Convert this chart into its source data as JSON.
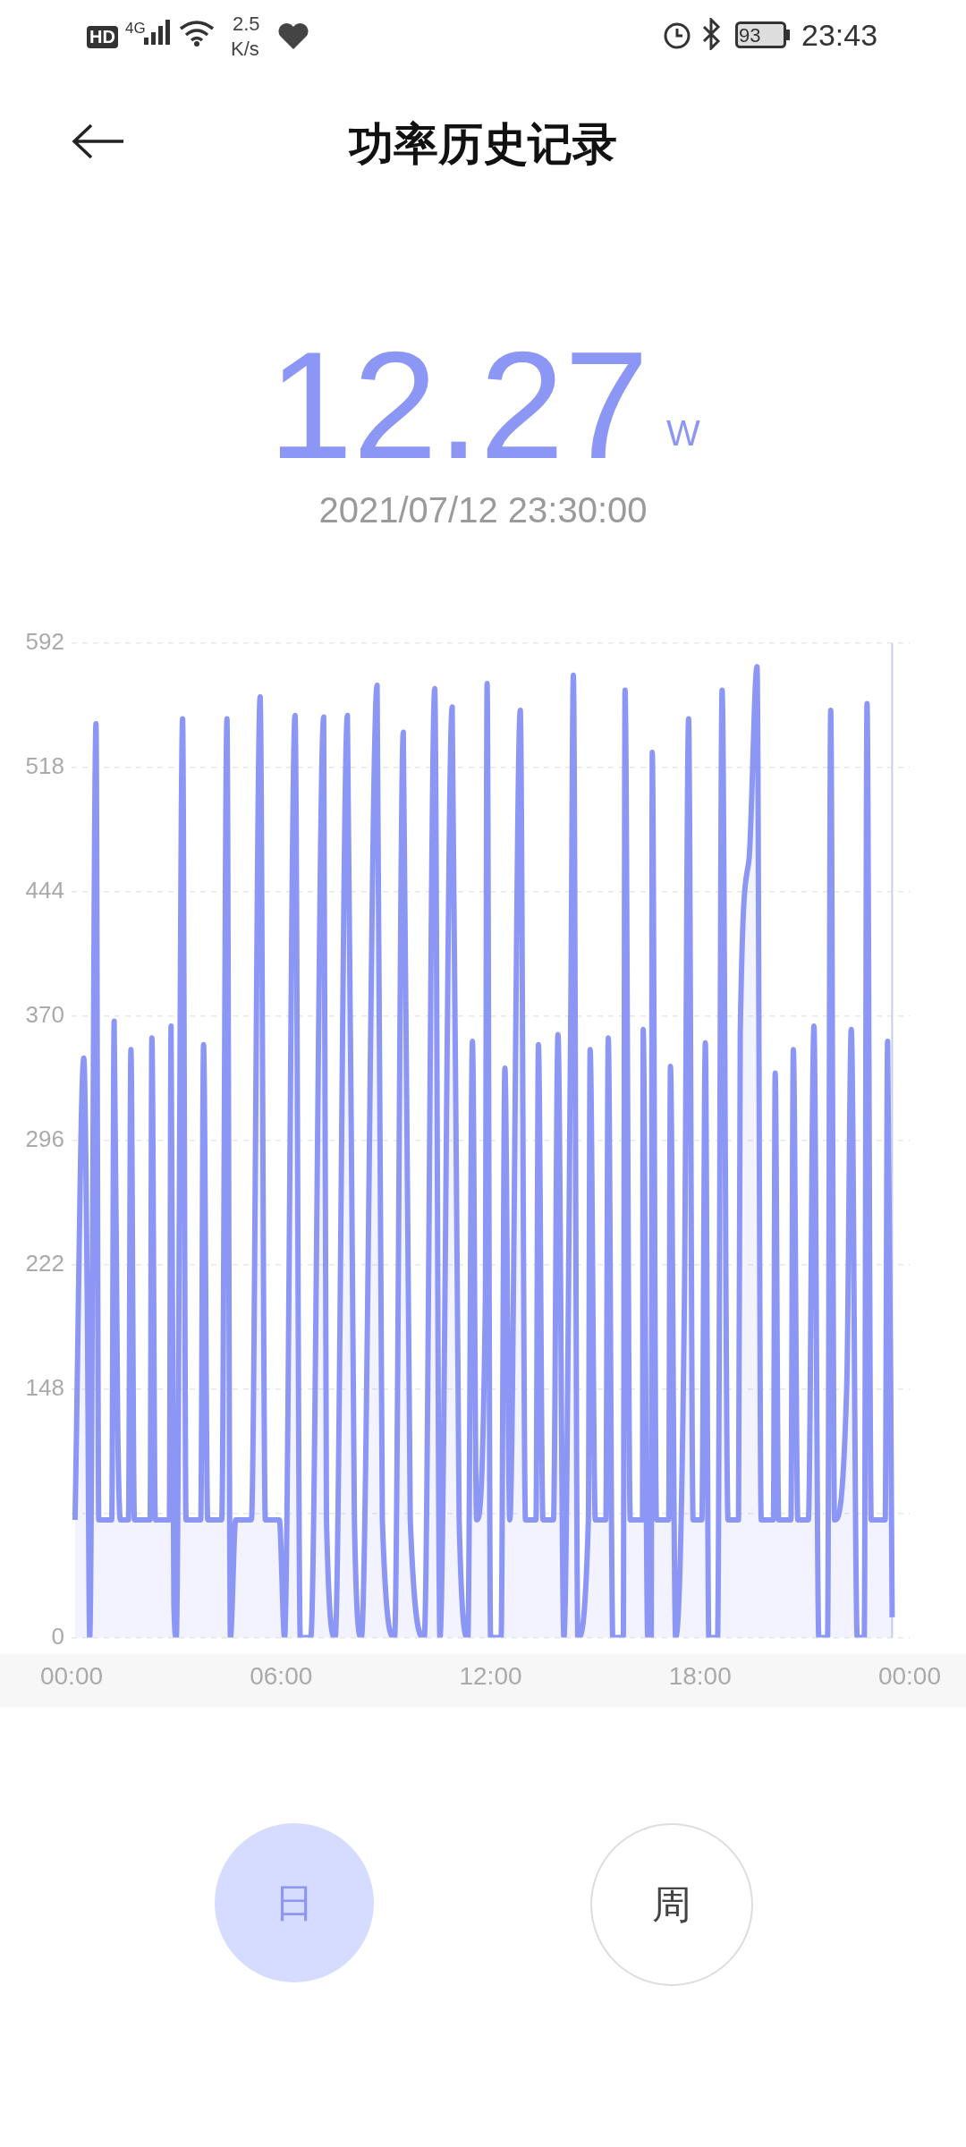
{
  "chart_data": {
    "type": "area",
    "title": "功率历史记录",
    "annotations": [
      "12.27",
      "W",
      "2021/07/12 23:30:00",
      "日",
      "周",
      "HD",
      "4G",
      "2.5",
      "K/s",
      "93",
      "23:43"
    ],
    "x": [
      0.1,
      0.35,
      0.45,
      0.52,
      0.7,
      0.78,
      1.15,
      1.22,
      1.32,
      1.4,
      1.63,
      1.7,
      1.8,
      2.25,
      2.3,
      2.4,
      2.8,
      2.85,
      2.93,
      3.0,
      3.18,
      3.28,
      3.7,
      3.78,
      3.9,
      4.3,
      4.45,
      4.55,
      4.7,
      5.15,
      5.4,
      5.55,
      5.95,
      6.1,
      6.4,
      6.55,
      6.85,
      7.22,
      7.3,
      7.55,
      7.9,
      8.1,
      8.3,
      8.75,
      8.9,
      9.25,
      9.5,
      9.7,
      10.1,
      10.4,
      10.55,
      10.9,
      11.1,
      11.35,
      11.48,
      11.6,
      11.85,
      11.9,
      12.0,
      12.3,
      12.41,
      12.55,
      12.85,
      13.0,
      13.3,
      13.37,
      13.5,
      13.8,
      13.93,
      14.1,
      14.3,
      14.37,
      14.5,
      14.8,
      14.85,
      15.0,
      15.3,
      15.37,
      15.5,
      15.8,
      15.85,
      16.0,
      16.35,
      16.37,
      16.5,
      16.6,
      16.63,
      16.75,
      17.1,
      17.15,
      17.3,
      17.55,
      17.67,
      17.8,
      18.05,
      18.15,
      18.25,
      18.5,
      18.63,
      18.8,
      19.1,
      19.15,
      19.4,
      19.63,
      19.75,
      20.1,
      20.15,
      20.25,
      20.6,
      20.67,
      20.8,
      21.1,
      21.26,
      21.4,
      21.65,
      21.74,
      21.85,
      22.2,
      22.33,
      22.5,
      22.7,
      22.78,
      22.9,
      23.3,
      23.37,
      23.5
    ],
    "series": [
      {
        "color": "#8c96f5",
        "values": [
          70,
          345,
          200,
          0,
          544,
          70,
          70,
          367,
          130,
          70,
          70,
          350,
          70,
          70,
          357,
          70,
          70,
          364,
          20,
          0,
          547,
          70,
          70,
          353,
          70,
          70,
          547,
          0,
          70,
          70,
          560,
          70,
          70,
          0,
          549,
          0,
          0,
          548,
          70,
          0,
          549,
          70,
          0,
          567,
          70,
          0,
          539,
          70,
          0,
          565,
          0,
          554,
          70,
          0,
          355,
          70,
          200,
          568,
          0,
          0,
          339,
          70,
          552,
          70,
          70,
          353,
          70,
          70,
          359,
          0,
          380,
          573,
          0,
          70,
          350,
          70,
          70,
          357,
          0,
          0,
          564,
          70,
          70,
          362,
          0,
          0,
          527,
          70,
          70,
          340,
          0,
          200,
          547,
          70,
          70,
          354,
          0,
          0,
          564,
          70,
          70,
          360,
          463,
          578,
          70,
          70,
          336,
          70,
          70,
          350,
          70,
          70,
          364,
          0,
          0,
          552,
          70,
          150,
          362,
          0,
          0,
          556,
          70,
          70,
          355,
          12
        ]
      }
    ],
    "xlim": [
      0,
      24
    ],
    "xticks": [
      {
        "value": 0,
        "label": "00:00"
      },
      {
        "value": 6,
        "label": "06:00"
      },
      {
        "value": 12,
        "label": "12:00"
      },
      {
        "value": 18,
        "label": "18:00"
      },
      {
        "value": 24,
        "label": "00:00"
      }
    ],
    "ylim": [
      0,
      592
    ],
    "yticks": [
      0,
      {
        "value": 74,
        "label": null
      },
      148,
      222,
      296,
      370,
      444,
      518,
      592
    ],
    "grid": "y",
    "marker": "none",
    "line_style": "solid",
    "ref_lines": [
      {
        "axis": "x",
        "value": 23.5,
        "color": "#c8cdf0"
      }
    ]
  }
}
